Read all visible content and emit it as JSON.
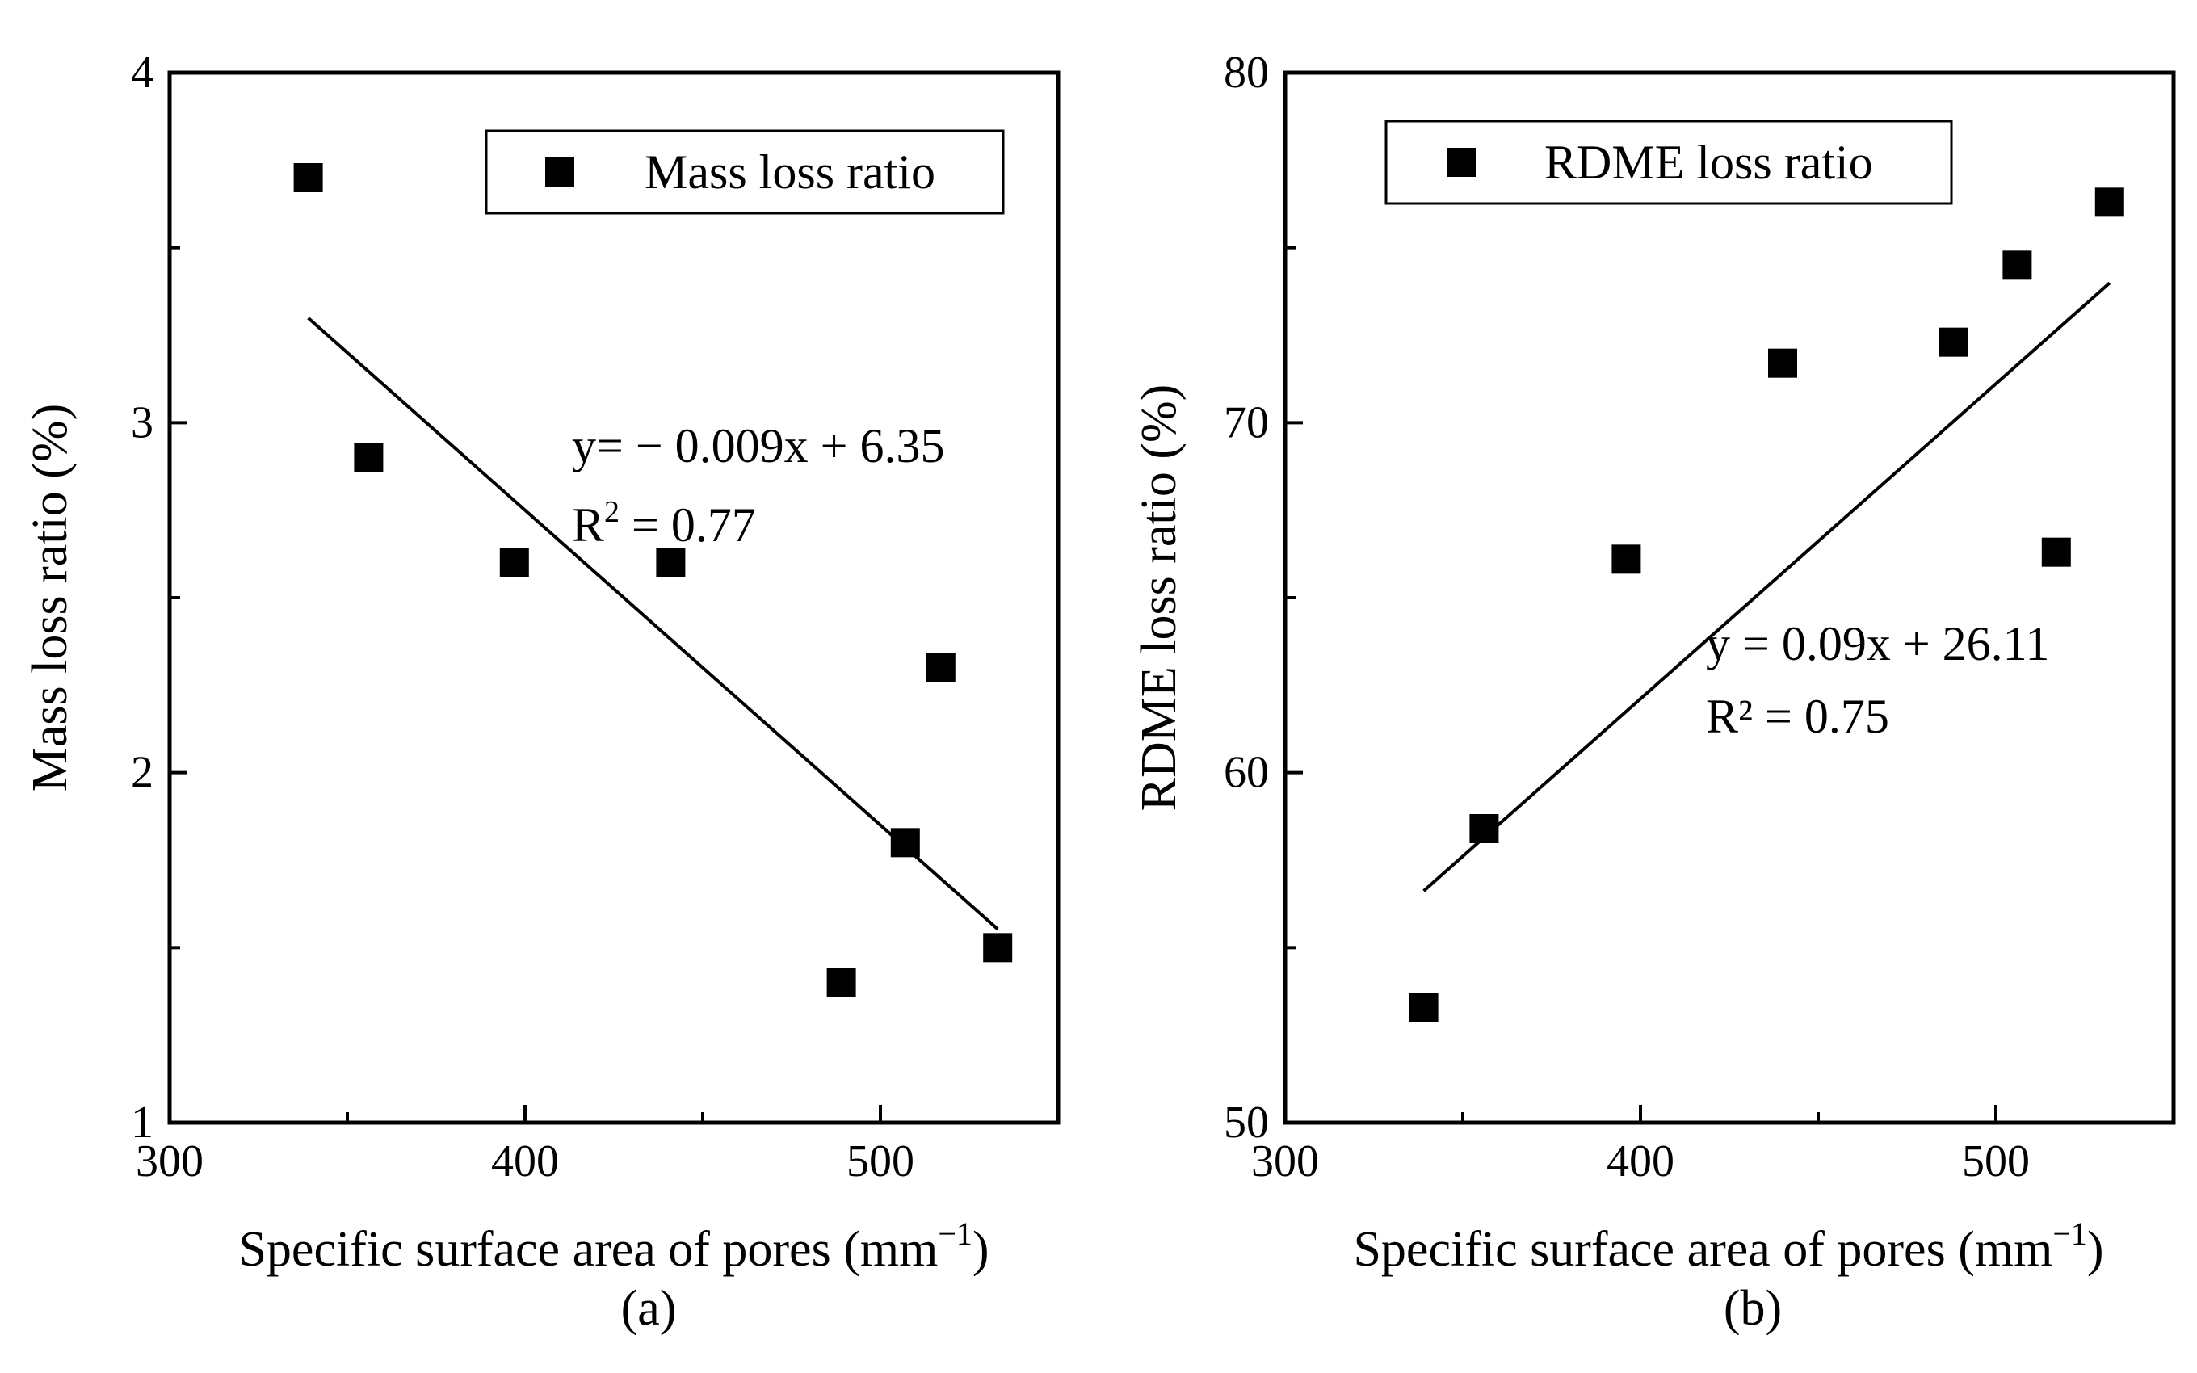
{
  "chart_data": [
    {
      "type": "scatter",
      "panel_label": "(a)",
      "title": "",
      "xlabel": "Specific surface area of pores (mm",
      "xlabel_sup": "−1",
      "xlabel_end": ")",
      "ylabel": "Mass loss ratio (%)",
      "xlim": [
        300,
        550
      ],
      "ylim": [
        1,
        4
      ],
      "xticks": [
        300,
        400,
        500
      ],
      "yticks": [
        1,
        2,
        3,
        4
      ],
      "legend": {
        "label": "Mass loss ratio",
        "position": "top-right"
      },
      "series": [
        {
          "name": "Mass loss ratio",
          "x": [
            339,
            356,
            397,
            441,
            489,
            507,
            517,
            533
          ],
          "y": [
            3.7,
            2.9,
            2.6,
            2.6,
            1.4,
            1.8,
            2.3,
            1.5
          ]
        }
      ],
      "fit": {
        "x_range": [
          339,
          533
        ],
        "slope": -0.009,
        "intercept": 6.35,
        "equation": "y= − 0.009x + 6.35",
        "r2_prefix": "R",
        "r2_sup": "2",
        "r2_value": " = 0.77"
      }
    },
    {
      "type": "scatter",
      "panel_label": "(b)",
      "title": "",
      "xlabel": "Specific surface area of pores (mm",
      "xlabel_sup": "−1",
      "xlabel_end": ")",
      "ylabel": "RDME loss ratio (%)",
      "xlim": [
        300,
        550
      ],
      "ylim": [
        50,
        80
      ],
      "xticks": [
        300,
        400,
        500
      ],
      "yticks": [
        50,
        60,
        70,
        80
      ],
      "legend": {
        "label": "RDME loss ratio",
        "position": "top-left"
      },
      "series": [
        {
          "name": "RDME loss ratio",
          "x": [
            339,
            356,
            396,
            440,
            488,
            506,
            517,
            532
          ],
          "y": [
            53.3,
            58.4,
            66.1,
            71.7,
            72.3,
            74.5,
            66.3,
            76.3
          ]
        }
      ],
      "fit": {
        "x_range": [
          339,
          532
        ],
        "slope": 0.09,
        "intercept": 26.11,
        "equation": "y = 0.09x + 26.11",
        "r2_prefix": "R² = 0.75"
      }
    }
  ]
}
